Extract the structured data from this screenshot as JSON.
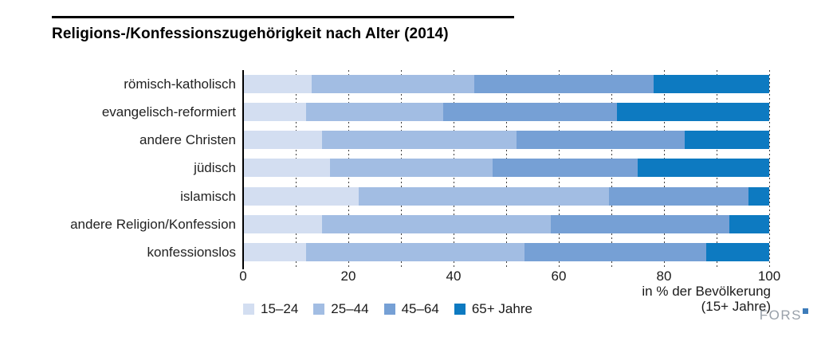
{
  "title": "Religions-/Konfessionszugehörigkeit nach Alter (2014)",
  "chart_data": {
    "type": "bar",
    "orientation": "horizontal",
    "stacked": true,
    "unit": "% der Bevölkerung (15+ Jahre)",
    "title": "Religions-/Konfessionszugehörigkeit nach Alter (2014)",
    "categories": [
      "römisch-katholisch",
      "evangelisch-reformiert",
      "andere Christen",
      "jüdisch",
      "islamisch",
      "andere Religion/Konfession",
      "konfessionslos"
    ],
    "series": [
      {
        "name": "15–24",
        "color": "#d3def1",
        "values": [
          13,
          12,
          15,
          16.5,
          22,
          15,
          12
        ]
      },
      {
        "name": "25–44",
        "color": "#a2bde3",
        "values": [
          31,
          26,
          37,
          31,
          47.5,
          43.5,
          41.5
        ]
      },
      {
        "name": "45–64",
        "color": "#76a0d5",
        "values": [
          34,
          33,
          32,
          27.5,
          26.5,
          34,
          34.5
        ]
      },
      {
        "name": "65+ Jahre",
        "color": "#0d7ac1",
        "values": [
          22,
          29,
          16,
          25,
          4,
          7.5,
          12
        ]
      }
    ],
    "xlim": [
      0,
      100
    ],
    "x_ticks": [
      0,
      20,
      40,
      60,
      80,
      100
    ],
    "gridline_step": 10,
    "grid": true,
    "legend_position": "bottom-left",
    "axis_note_line1": "in % der Bevölkerung",
    "axis_note_line2": "(15+ Jahre)"
  },
  "logo": {
    "text": "FORS"
  }
}
